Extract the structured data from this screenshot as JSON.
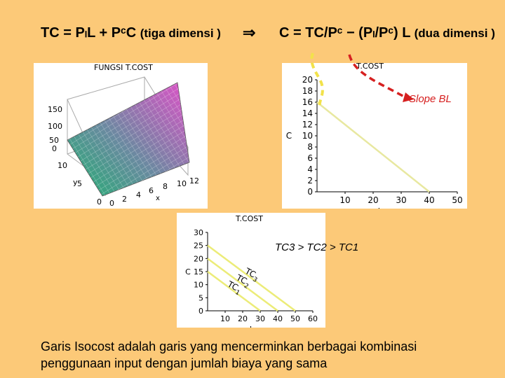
{
  "equations": {
    "left": "TC = PₗL + PᶜC",
    "left_note": "(tiga dimensi )",
    "implies": "⇒",
    "right": "C = TC/Pᶜ − (Pₗ/Pᶜ) L",
    "right_note": "(dua dimensi )"
  },
  "panel_3d": {
    "title": "FUNGSI T.COST",
    "z_ticks": [
      "150",
      "100",
      "50",
      "0"
    ],
    "y_ticks": [
      "10",
      "5",
      "0"
    ],
    "x_ticks": [
      "0",
      "2",
      "4",
      "6",
      "8",
      "10",
      "12"
    ],
    "xlabel": "x",
    "ylabel": "y"
  },
  "panel_line": {
    "title": "T.COST",
    "annotation": "Slope BL",
    "colors": {
      "line": "#e8e8a0",
      "arrow": "#d62020",
      "dashed_curve": "#f2e24a"
    }
  },
  "panel_isocost": {
    "title": "T.COST",
    "annotation": "TC3 > TC2 > TC1",
    "colors": {
      "line": "#ecec78"
    }
  },
  "chart_data": [
    {
      "type": "line",
      "title": "T.COST",
      "xlabel": "L",
      "ylabel": "C",
      "xlim": [
        0,
        50
      ],
      "ylim": [
        0,
        20
      ],
      "x_ticks": [
        "0",
        "10",
        "20",
        "30",
        "40",
        "50"
      ],
      "y_ticks": [
        "0",
        "2",
        "4",
        "6",
        "8",
        "10",
        "12",
        "14",
        "16",
        "18",
        "20"
      ],
      "series": [
        {
          "x": [
            0,
            40
          ],
          "y": [
            16,
            0
          ]
        }
      ]
    },
    {
      "type": "line",
      "title": "T.COST",
      "xlabel": "L",
      "ylabel": "C",
      "xlim": [
        0,
        60
      ],
      "ylim": [
        0,
        30
      ],
      "x_ticks": [
        "0",
        "10",
        "20",
        "30",
        "40",
        "50",
        "60"
      ],
      "y_ticks": [
        "0",
        "5",
        "10",
        "15",
        "20",
        "25",
        "30"
      ],
      "series": [
        {
          "name": "TC1",
          "x": [
            0,
            30
          ],
          "y": [
            15,
            0
          ]
        },
        {
          "name": "TC2",
          "x": [
            0,
            40
          ],
          "y": [
            20,
            0
          ]
        },
        {
          "name": "TC3",
          "x": [
            0,
            50
          ],
          "y": [
            25,
            0
          ]
        }
      ]
    }
  ],
  "caption": "Garis Isocost adalah garis yang mencerminkan berbagai kombinasi penggunaan input dengan jumlah biaya yang sama"
}
